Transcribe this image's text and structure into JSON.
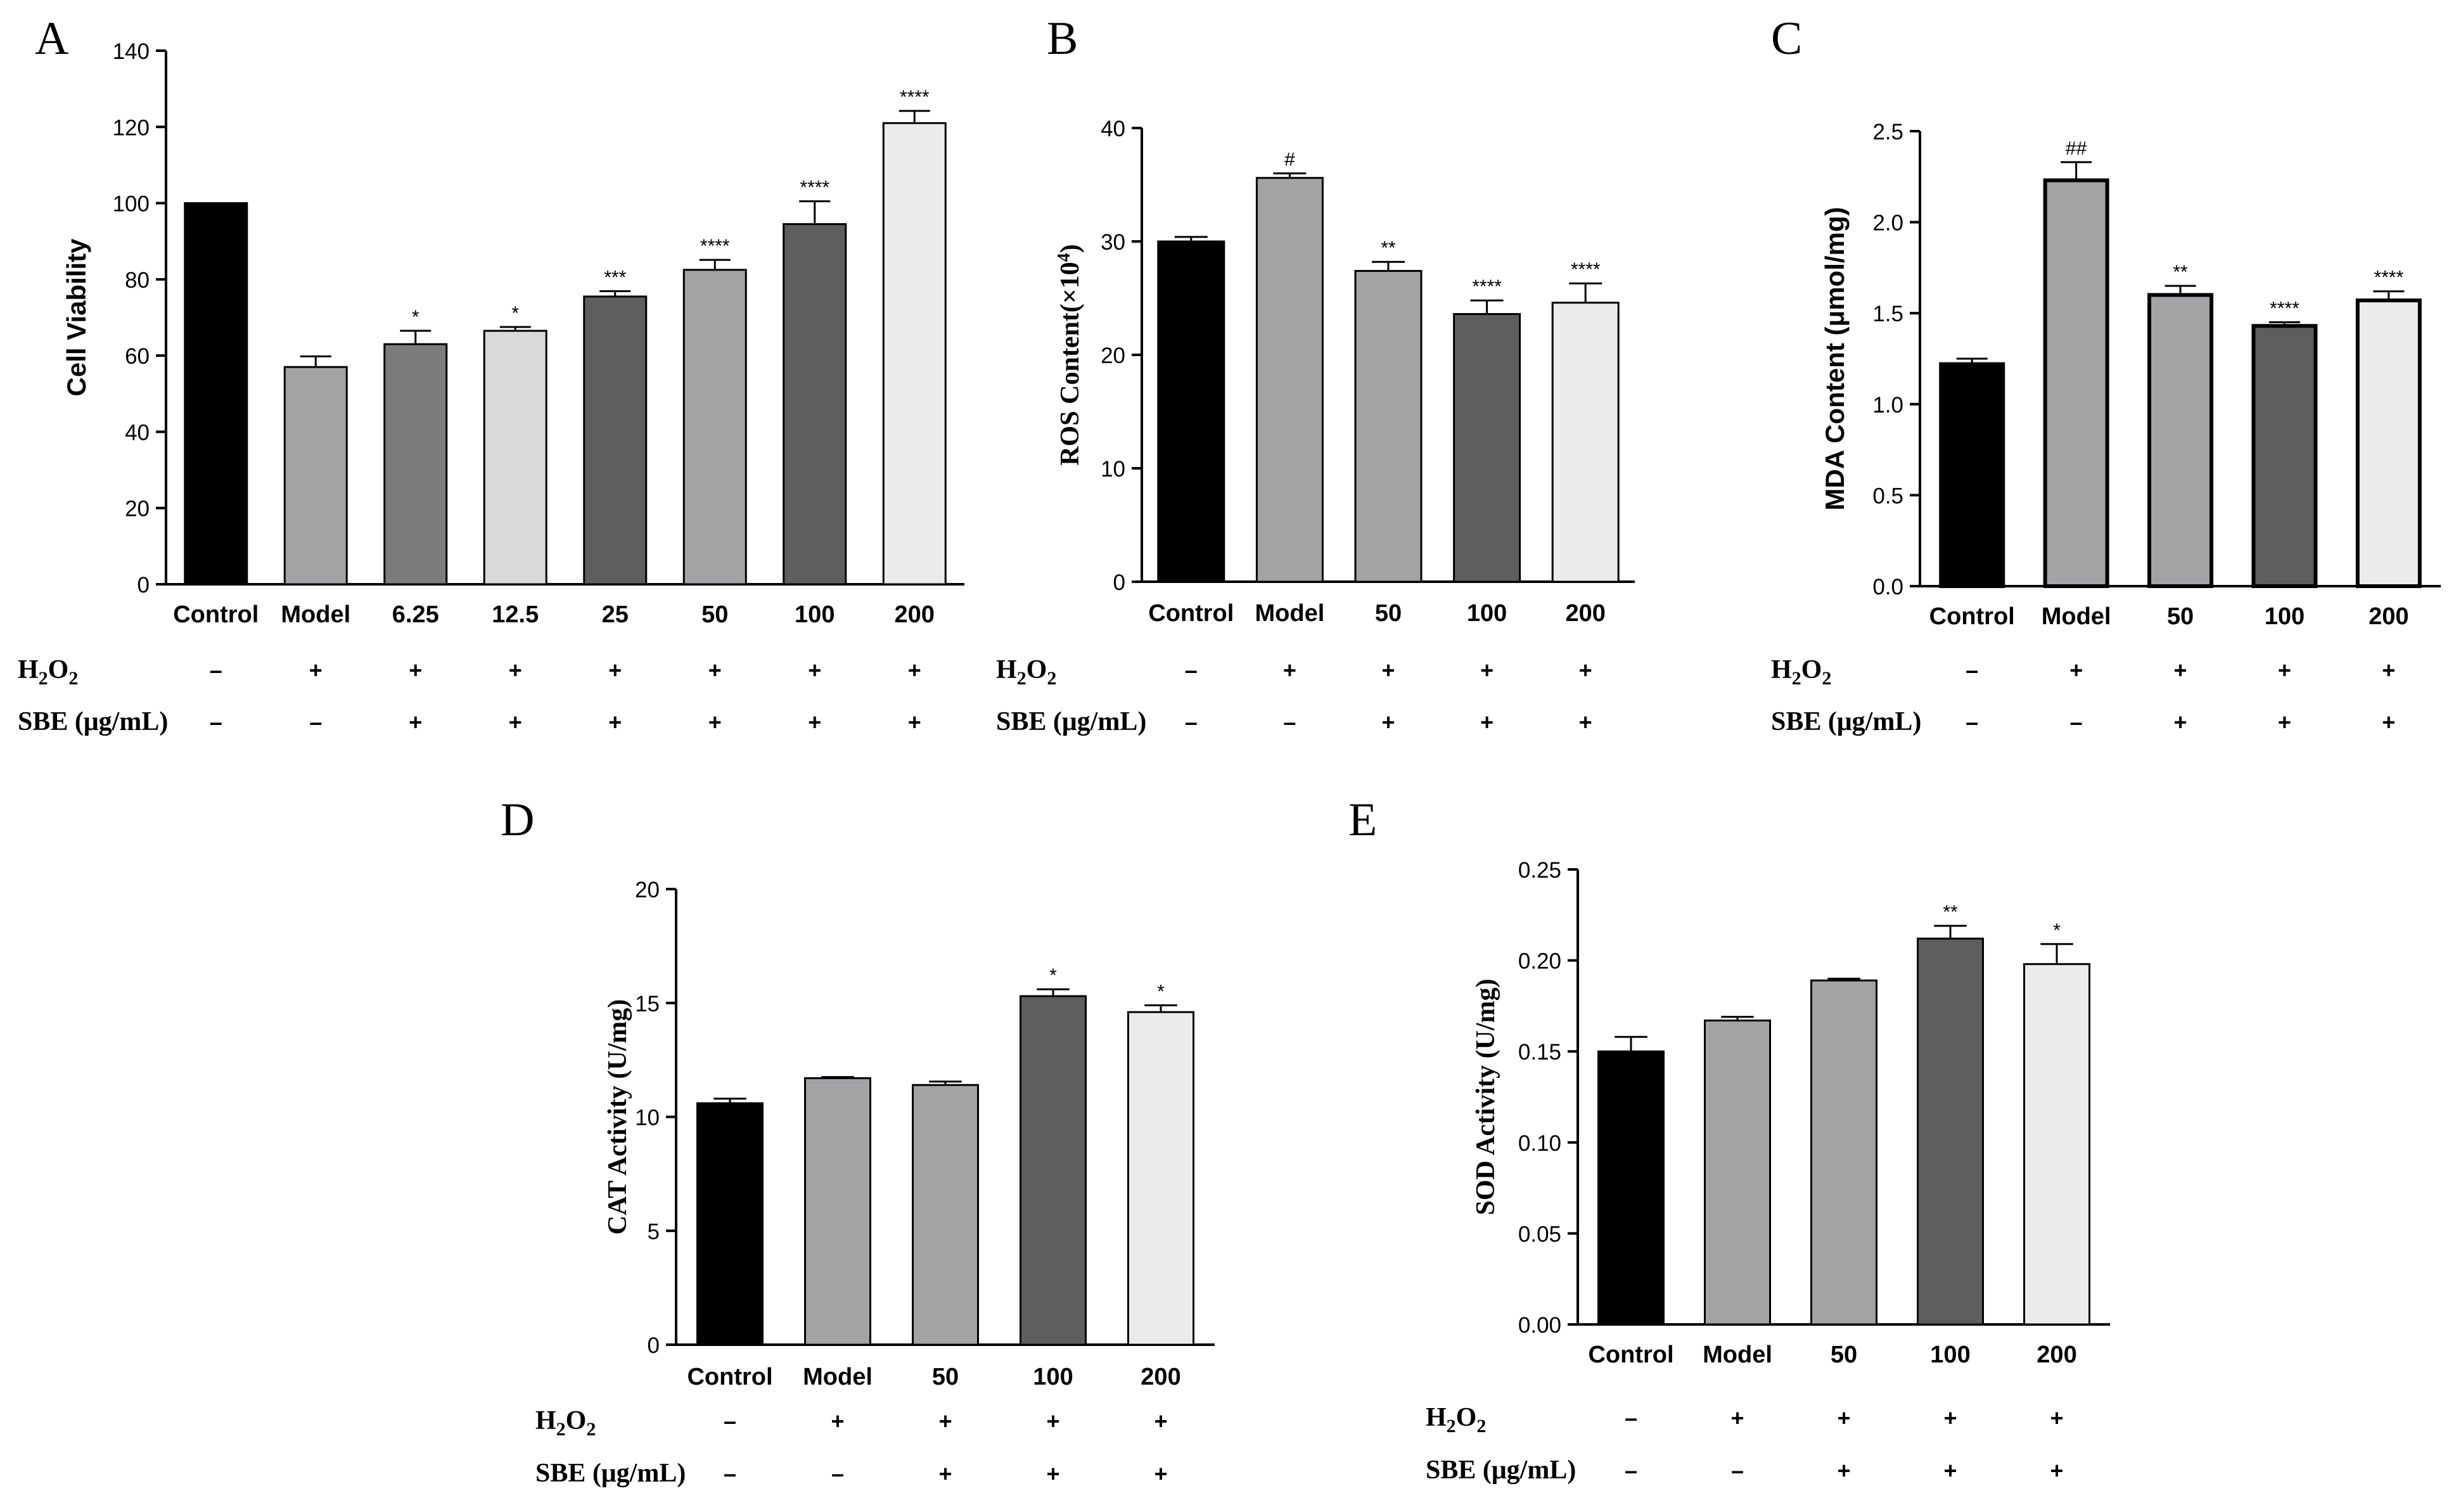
{
  "chart_data": [
    {
      "type": "bar",
      "panel": "A",
      "ylabel": "Cell Viability",
      "ylabel_sup": "",
      "ylabel_tail": "",
      "ylim": [
        0,
        140
      ],
      "yticks": [
        "0",
        "20",
        "40",
        "60",
        "80",
        "100",
        "120",
        "140"
      ],
      "categories": [
        "Control",
        "Model",
        "6.25",
        "12.5",
        "25",
        "50",
        "100",
        "200"
      ],
      "values": [
        100,
        57,
        63,
        66.5,
        75.5,
        82.5,
        94.5,
        121
      ],
      "errors": [
        0,
        2.8,
        3.5,
        1.0,
        1.4,
        2.6,
        6.0,
        3.2
      ],
      "significance": [
        "",
        "",
        "*",
        "*",
        "***",
        "****",
        "****",
        "****"
      ],
      "fill_colors": [
        "#000000",
        "#a3a3a6",
        "#7c7c7e",
        "#d9d9d9",
        "#5e5e5e",
        "#a3a3a6",
        "#5e5e5e",
        "#ebebeb"
      ],
      "treatments": [
        {
          "label_main": "H",
          "label_sub1": "2",
          "label_mid": "O",
          "label_sub2": "2",
          "label_rest": "",
          "signs": [
            "–",
            "+",
            "+",
            "+",
            "+",
            "+",
            "+",
            "+"
          ]
        },
        {
          "label_main": "SBE (μg/mL)",
          "label_sub1": "",
          "label_mid": "",
          "label_sub2": "",
          "label_rest": "",
          "signs": [
            "–",
            "–",
            "+",
            "+",
            "+",
            "+",
            "+",
            "+"
          ]
        }
      ]
    },
    {
      "type": "bar",
      "panel": "B",
      "ylabel": "ROS Content(×10",
      "ylabel_sup": "4",
      "ylabel_tail": ")",
      "ylim": [
        0,
        40
      ],
      "yticks": [
        "0",
        "10",
        "20",
        "30",
        "40"
      ],
      "categories": [
        "Control",
        "Model",
        "50",
        "100",
        "200"
      ],
      "values": [
        30,
        35.6,
        27.4,
        23.6,
        24.6
      ],
      "errors": [
        0.4,
        0.4,
        0.8,
        1.2,
        1.7
      ],
      "significance": [
        "",
        "#",
        "**",
        "****",
        "****"
      ],
      "fill_colors": [
        "#000000",
        "#a3a3a6",
        "#a3a3a6",
        "#5e5e5e",
        "#ebebeb"
      ],
      "treatments": [
        {
          "label_main": "H",
          "label_sub1": "2",
          "label_mid": "O",
          "label_sub2": "2",
          "label_rest": "",
          "signs": [
            "–",
            "+",
            "+",
            "+",
            "+"
          ]
        },
        {
          "label_main": "SBE (μg/mL)",
          "label_sub1": "",
          "label_mid": "",
          "label_sub2": "",
          "label_rest": "",
          "signs": [
            "–",
            "–",
            "+",
            "+",
            "+"
          ]
        }
      ]
    },
    {
      "type": "bar",
      "panel": "C",
      "ylabel": "MDA Content (μmol/mg)",
      "ylabel_sup": "",
      "ylabel_tail": "",
      "ylim": [
        0,
        2.5
      ],
      "yticks": [
        "0.0",
        "0.5",
        "1.0",
        "1.5",
        "2.0",
        "2.5"
      ],
      "categories": [
        "Control",
        "Model",
        "50",
        "100",
        "200"
      ],
      "values": [
        1.22,
        2.23,
        1.6,
        1.43,
        1.57
      ],
      "errors": [
        0.03,
        0.1,
        0.05,
        0.02,
        0.05
      ],
      "significance": [
        "",
        "##",
        "**",
        "****",
        "****"
      ],
      "fill_colors": [
        "#000000",
        "#a3a3a6",
        "#a3a3a6",
        "#5e5e5e",
        "#ebebeb"
      ],
      "treatments": [
        {
          "label_main": "H",
          "label_sub1": "2",
          "label_mid": "O",
          "label_sub2": "2",
          "label_rest": "",
          "signs": [
            "–",
            "+",
            "+",
            "+",
            "+"
          ]
        },
        {
          "label_main": "SBE (μg/mL)",
          "label_sub1": "",
          "label_mid": "",
          "label_sub2": "",
          "label_rest": "",
          "signs": [
            "–",
            "–",
            "+",
            "+",
            "+"
          ]
        }
      ]
    },
    {
      "type": "bar",
      "panel": "D",
      "ylabel": "CAT Activity (U/mg)",
      "ylabel_sup": "",
      "ylabel_tail": "",
      "ylim": [
        0,
        20
      ],
      "yticks": [
        "0",
        "5",
        "10",
        "15",
        "20"
      ],
      "categories": [
        "Control",
        "Model",
        "50",
        "100",
        "200"
      ],
      "values": [
        10.6,
        11.7,
        11.4,
        15.3,
        14.6
      ],
      "errors": [
        0.2,
        0.05,
        0.15,
        0.3,
        0.3
      ],
      "significance": [
        "",
        "",
        "",
        "*",
        "*"
      ],
      "fill_colors": [
        "#000000",
        "#a3a3a6",
        "#a3a3a6",
        "#5e5e5e",
        "#ebebeb"
      ],
      "treatments": [
        {
          "label_main": "H",
          "label_sub1": "2",
          "label_mid": "O",
          "label_sub2": "2",
          "label_rest": "",
          "signs": [
            "–",
            "+",
            "+",
            "+",
            "+"
          ]
        },
        {
          "label_main": "SBE (μg/mL)",
          "label_sub1": "",
          "label_mid": "",
          "label_sub2": "",
          "label_rest": "",
          "signs": [
            "–",
            "–",
            "+",
            "+",
            "+"
          ]
        }
      ]
    },
    {
      "type": "bar",
      "panel": "E",
      "ylabel": "SOD Activity (U/mg)",
      "ylabel_sup": "",
      "ylabel_tail": "",
      "ylim": [
        0,
        0.25
      ],
      "yticks": [
        "0.00",
        "0.05",
        "0.10",
        "0.15",
        "0.20",
        "0.25"
      ],
      "categories": [
        "Control",
        "Model",
        "50",
        "100",
        "200"
      ],
      "values": [
        0.15,
        0.167,
        0.189,
        0.212,
        0.198
      ],
      "errors": [
        0.008,
        0.002,
        0.001,
        0.007,
        0.011
      ],
      "significance": [
        "",
        "",
        "",
        "**",
        "*"
      ],
      "fill_colors": [
        "#000000",
        "#a3a3a6",
        "#a3a3a6",
        "#5e5e5e",
        "#ebebeb"
      ],
      "treatments": [
        {
          "label_main": "H",
          "label_sub1": "2",
          "label_mid": "O",
          "label_sub2": "2",
          "label_rest": "",
          "signs": [
            "–",
            "+",
            "+",
            "+",
            "+"
          ]
        },
        {
          "label_main": "SBE (μg/mL)",
          "label_sub1": "",
          "label_mid": "",
          "label_sub2": "",
          "label_rest": "",
          "signs": [
            "–",
            "–",
            "+",
            "+",
            "+"
          ]
        }
      ]
    }
  ]
}
